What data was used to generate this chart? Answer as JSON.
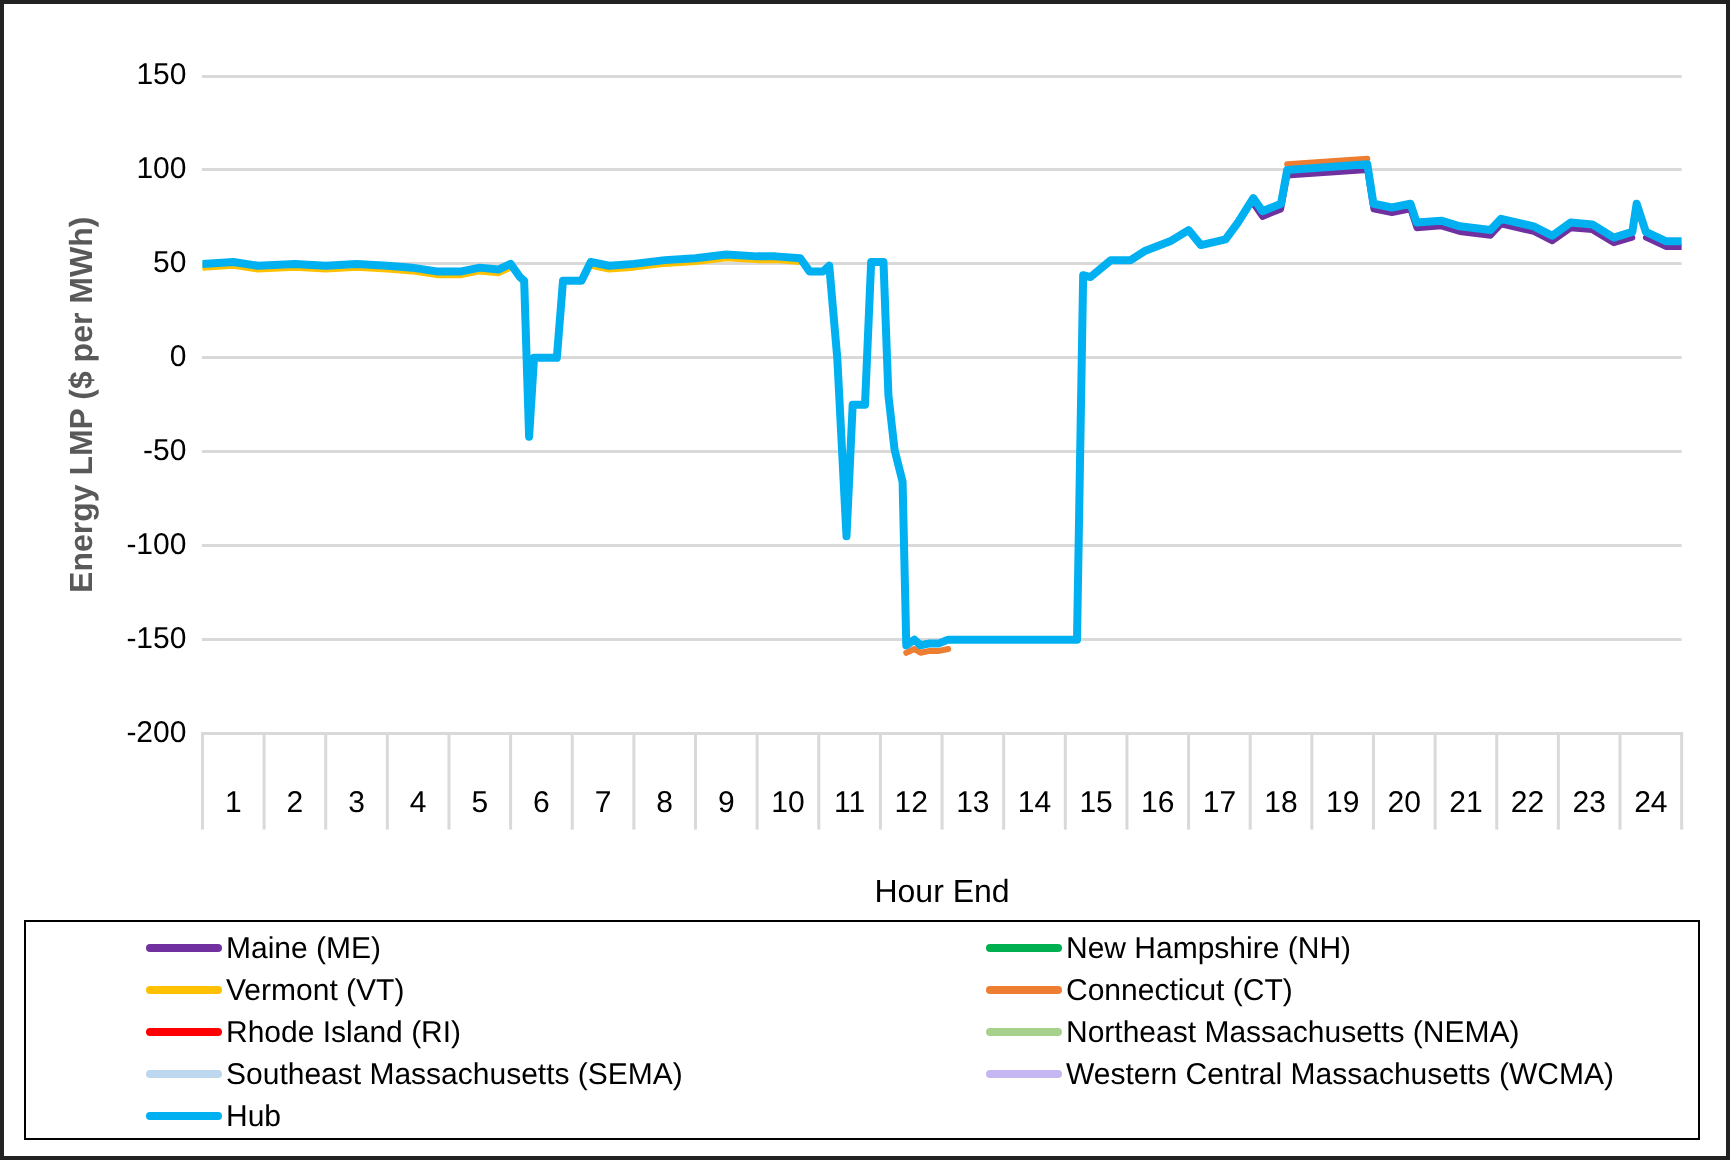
{
  "chart_data": {
    "type": "line",
    "xlabel": "Hour End",
    "ylabel": "Energy LMP ($ per MWh)",
    "x": [
      0,
      0.5,
      0.9,
      1.5,
      2,
      2.5,
      3,
      3.4,
      3.8,
      4.2,
      4.5,
      4.8,
      5,
      5.15,
      5.22,
      5.3,
      5.38,
      5.75,
      5.85,
      6.15,
      6.3,
      6.6,
      7,
      7.5,
      8,
      8.5,
      9,
      9.3,
      9.7,
      9.85,
      10.07,
      10.17,
      10.3,
      10.45,
      10.55,
      10.75,
      10.85,
      11.05,
      11.13,
      11.23,
      11.36,
      11.42,
      11.55,
      11.65,
      11.8,
      11.95,
      12.1,
      12.26,
      14.19,
      14.29,
      14.41,
      14.74,
      15.06,
      15.3,
      15.7,
      16,
      16.2,
      16.6,
      16.8,
      17.05,
      17.2,
      17.5,
      17.6,
      18.9,
      19,
      19.3,
      19.6,
      19.7,
      20.1,
      20.4,
      20.9,
      21.07,
      21.6,
      21.9,
      22.2,
      22.55,
      22.9,
      23.2,
      23.27,
      23.42,
      23.75,
      24
    ],
    "xlim": [
      0,
      24
    ],
    "xticks": [
      {
        "value": 0.5,
        "label": "1"
      },
      {
        "value": 1.5,
        "label": "2"
      },
      {
        "value": 2.5,
        "label": "3"
      },
      {
        "value": 3.5,
        "label": "4"
      },
      {
        "value": 4.5,
        "label": "5"
      },
      {
        "value": 5.5,
        "label": "6"
      },
      {
        "value": 6.5,
        "label": "7"
      },
      {
        "value": 7.5,
        "label": "8"
      },
      {
        "value": 8.5,
        "label": "9"
      },
      {
        "value": 9.5,
        "label": "10"
      },
      {
        "value": 10.5,
        "label": "11"
      },
      {
        "value": 11.5,
        "label": "12"
      },
      {
        "value": 12.5,
        "label": "13"
      },
      {
        "value": 13.5,
        "label": "14"
      },
      {
        "value": 14.5,
        "label": "15"
      },
      {
        "value": 15.5,
        "label": "16"
      },
      {
        "value": 16.5,
        "label": "17"
      },
      {
        "value": 17.5,
        "label": "18"
      },
      {
        "value": 18.5,
        "label": "19"
      },
      {
        "value": 19.5,
        "label": "20"
      },
      {
        "value": 20.5,
        "label": "21"
      },
      {
        "value": 21.5,
        "label": "22"
      },
      {
        "value": 22.5,
        "label": "23"
      },
      {
        "value": 23.5,
        "label": "24"
      }
    ],
    "ylim": [
      -200,
      150
    ],
    "yticks": [
      -200,
      -150,
      -100,
      -50,
      0,
      50,
      100,
      150
    ],
    "grid": "y",
    "legend": "bottom",
    "marker": "none",
    "line_style": "solid",
    "series": [
      {
        "name": "Maine (ME)",
        "color": "#7030a0",
        "values": [
          null,
          null,
          null,
          null,
          null,
          null,
          null,
          null,
          null,
          null,
          null,
          null,
          null,
          null,
          null,
          null,
          null,
          null,
          null,
          null,
          null,
          null,
          null,
          null,
          null,
          null,
          null,
          null,
          null,
          null,
          null,
          null,
          null,
          null,
          null,
          null,
          null,
          null,
          null,
          null,
          null,
          null,
          null,
          null,
          null,
          null,
          null,
          null,
          null,
          null,
          null,
          null,
          null,
          null,
          null,
          null,
          null,
          null,
          null,
          82,
          75,
          79,
          97,
          100,
          79,
          77,
          79,
          69,
          70,
          67,
          65,
          71,
          67,
          62,
          69,
          68,
          61,
          64,
          null,
          64,
          59,
          59
        ]
      },
      {
        "name": "New Hampshire (NH)",
        "color": "#00b050",
        "values": [
          null,
          null,
          null,
          null,
          null,
          null,
          null,
          null,
          null,
          null,
          null,
          null,
          null,
          null,
          null,
          null,
          null,
          null,
          null,
          null,
          null,
          null,
          null,
          null,
          null,
          null,
          null,
          null,
          null,
          null,
          null,
          null,
          null,
          null,
          null,
          null,
          null,
          null,
          null,
          null,
          null,
          null,
          null,
          null,
          null,
          null,
          null,
          null,
          null,
          null,
          null,
          null,
          null,
          null,
          null,
          null,
          null,
          null,
          null,
          null,
          null,
          null,
          null,
          null,
          null,
          null,
          null,
          null,
          null,
          null,
          null,
          null,
          null,
          null,
          null,
          null,
          null,
          null,
          null,
          null,
          null,
          null
        ]
      },
      {
        "name": "Vermont (VT)",
        "color": "#ffc000",
        "values": [
          48,
          49,
          47,
          48,
          47,
          48,
          47,
          46,
          44,
          44,
          46,
          45,
          48,
          null,
          null,
          null,
          null,
          null,
          null,
          null,
          49,
          47,
          48,
          50,
          51,
          53,
          52,
          52,
          51,
          null,
          null,
          null,
          null,
          null,
          null,
          null,
          null,
          null,
          null,
          null,
          null,
          null,
          null,
          null,
          null,
          null,
          null,
          null,
          null,
          null,
          null,
          null,
          null,
          null,
          null,
          null,
          null,
          null,
          null,
          null,
          null,
          null,
          null,
          null,
          null,
          null,
          null,
          null,
          null,
          null,
          null,
          null,
          null,
          null,
          null,
          null,
          null,
          null,
          null,
          null,
          null,
          null
        ]
      },
      {
        "name": "Connecticut (CT)",
        "color": "#ed7d31",
        "values": [
          null,
          null,
          null,
          null,
          null,
          null,
          null,
          null,
          null,
          null,
          null,
          null,
          null,
          null,
          null,
          null,
          null,
          null,
          null,
          null,
          null,
          null,
          null,
          null,
          null,
          null,
          null,
          null,
          null,
          null,
          null,
          null,
          null,
          null,
          null,
          null,
          null,
          null,
          null,
          null,
          null,
          -157,
          -155,
          -157,
          -156,
          -156,
          -155,
          null,
          null,
          null,
          null,
          null,
          null,
          null,
          null,
          null,
          null,
          null,
          null,
          null,
          null,
          null,
          103,
          106,
          null,
          null,
          null,
          null,
          null,
          null,
          null,
          null,
          null,
          null,
          null,
          null,
          null,
          null,
          null,
          null,
          null,
          null
        ]
      },
      {
        "name": "Rhode Island (RI)",
        "color": "#ff0000",
        "values": [
          null,
          null,
          null,
          null,
          null,
          null,
          null,
          null,
          null,
          null,
          null,
          null,
          null,
          null,
          null,
          null,
          null,
          null,
          null,
          null,
          null,
          null,
          null,
          null,
          null,
          null,
          null,
          null,
          null,
          null,
          null,
          null,
          null,
          null,
          null,
          null,
          null,
          null,
          null,
          null,
          null,
          null,
          null,
          null,
          null,
          null,
          null,
          null,
          null,
          null,
          null,
          null,
          null,
          null,
          null,
          null,
          null,
          null,
          null,
          null,
          null,
          null,
          null,
          null,
          null,
          null,
          null,
          null,
          null,
          null,
          null,
          null,
          null,
          null,
          null,
          null,
          null,
          null,
          null,
          null,
          null,
          null
        ]
      },
      {
        "name": "Northeast Massachusetts (NEMA)",
        "color": "#a9d18e",
        "values": [
          null,
          null,
          null,
          null,
          null,
          null,
          null,
          null,
          null,
          null,
          null,
          null,
          null,
          null,
          null,
          null,
          null,
          null,
          null,
          null,
          null,
          null,
          null,
          null,
          null,
          null,
          null,
          null,
          null,
          null,
          null,
          null,
          null,
          null,
          null,
          null,
          null,
          null,
          null,
          null,
          null,
          null,
          null,
          null,
          null,
          null,
          null,
          null,
          null,
          null,
          null,
          null,
          null,
          null,
          null,
          null,
          null,
          null,
          null,
          null,
          null,
          null,
          null,
          null,
          null,
          null,
          null,
          null,
          null,
          null,
          null,
          null,
          null,
          null,
          null,
          null,
          null,
          null,
          null,
          null,
          null,
          null
        ]
      },
      {
        "name": "Southeast Massachusetts (SEMA)",
        "color": "#bdd7ee",
        "values": [
          null,
          null,
          null,
          null,
          null,
          null,
          null,
          null,
          null,
          null,
          null,
          null,
          null,
          null,
          null,
          null,
          null,
          null,
          null,
          null,
          null,
          null,
          null,
          null,
          null,
          null,
          null,
          null,
          null,
          null,
          null,
          null,
          null,
          null,
          null,
          null,
          null,
          null,
          null,
          null,
          null,
          null,
          null,
          null,
          null,
          null,
          null,
          null,
          null,
          null,
          null,
          null,
          null,
          null,
          null,
          null,
          null,
          null,
          null,
          null,
          null,
          null,
          null,
          null,
          null,
          null,
          null,
          null,
          null,
          null,
          null,
          null,
          null,
          null,
          null,
          null,
          null,
          null,
          null,
          null,
          null,
          null
        ]
      },
      {
        "name": "Western Central Massachusetts (WCMA)",
        "color": "#c4b7f2",
        "values": [
          null,
          null,
          null,
          null,
          null,
          null,
          null,
          null,
          null,
          null,
          null,
          null,
          null,
          null,
          null,
          null,
          null,
          null,
          null,
          null,
          null,
          null,
          null,
          null,
          null,
          null,
          null,
          null,
          null,
          null,
          null,
          null,
          null,
          null,
          null,
          null,
          null,
          null,
          null,
          null,
          null,
          null,
          null,
          null,
          null,
          null,
          null,
          null,
          null,
          null,
          null,
          null,
          null,
          null,
          null,
          null,
          null,
          null,
          null,
          null,
          null,
          null,
          null,
          null,
          null,
          null,
          null,
          null,
          null,
          null,
          null,
          null,
          null,
          null,
          null,
          null,
          null,
          null,
          null,
          null,
          null,
          null
        ]
      },
      {
        "name": "Hub",
        "color": "#00b0f0",
        "values": [
          50,
          51,
          49,
          50,
          49,
          50,
          49,
          48,
          46,
          46,
          48,
          47,
          50,
          43,
          41,
          -42,
          0,
          0,
          41,
          41,
          51,
          49,
          50,
          52,
          53,
          55,
          54,
          54,
          53,
          46,
          46,
          49,
          0,
          -95,
          -25,
          -25,
          51,
          51,
          -20,
          -49,
          -66,
          -153,
          -150,
          -153,
          -152,
          -152,
          -150,
          -150,
          -150,
          44,
          43,
          52,
          52,
          57,
          62,
          68,
          60,
          63,
          72,
          85,
          78,
          82,
          100,
          103,
          82,
          80,
          82,
          72,
          73,
          70,
          68,
          74,
          70,
          65,
          72,
          71,
          64,
          67,
          82,
          67,
          62,
          62
        ]
      }
    ]
  }
}
